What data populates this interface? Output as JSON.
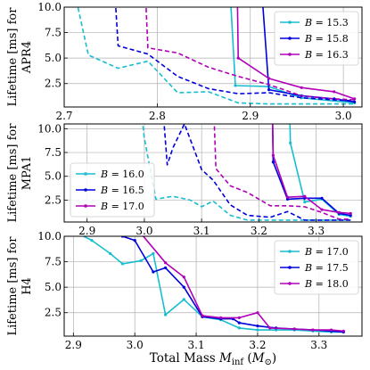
{
  "xlabel": "Total Mass M_inf (M⊙)",
  "colors": {
    "cyan": "#17becf",
    "blue": "#0000dd",
    "magenta": "#b000b8"
  },
  "chart_data": [
    {
      "type": "line",
      "ylabel": [
        "Lifetime [ms] for",
        "APR4"
      ],
      "xlim": [
        2.7,
        3.02
      ],
      "ylim": [
        0.2,
        10.0
      ],
      "xticks": [
        "2.7",
        "2.8",
        "2.9",
        "3.0"
      ],
      "xtick_values": [
        2.7,
        2.8,
        2.9,
        3.0
      ],
      "yticks": [
        "2.5",
        "5.0",
        "7.5",
        "10.0"
      ],
      "ytick_values": [
        2.5,
        5.0,
        7.5,
        10.0
      ],
      "legend": "top-right",
      "series": [
        {
          "name": "B = 15.3",
          "color": "cyan",
          "dashed": {
            "x": [
              2.71,
              2.726,
              2.758,
              2.79,
              2.822,
              2.855,
              2.887,
              2.92,
              2.955,
              2.99,
              3.012
            ],
            "y": [
              12.0,
              5.3,
              4.0,
              4.7,
              1.6,
              1.7,
              0.6,
              0.5,
              0.5,
              0.5,
              0.5
            ]
          },
          "solid": {
            "x": [
              2.878,
              2.884,
              2.92,
              2.955,
              3.012
            ],
            "y": [
              12.0,
              2.3,
              2.2,
              1.1,
              0.6
            ]
          }
        },
        {
          "name": "B = 15.8",
          "color": "blue",
          "dashed": {
            "x": [
              2.754,
              2.758,
              2.79,
              2.822,
              2.855,
              2.887,
              2.92,
              2.955,
              2.99,
              3.012
            ],
            "y": [
              12.0,
              6.2,
              5.4,
              3.2,
              2.0,
              1.5,
              1.6,
              1.1,
              0.9,
              0.8
            ]
          },
          "solid": {
            "x": [
              2.912,
              2.92,
              2.955,
              2.99,
              3.012
            ],
            "y": [
              12.0,
              1.9,
              1.3,
              1.0,
              0.7
            ]
          }
        },
        {
          "name": "B = 16.3",
          "color": "magenta",
          "dashed": {
            "x": [
              2.787,
              2.79,
              2.822,
              2.855,
              2.887,
              2.92,
              2.955,
              2.99,
              3.012
            ],
            "y": [
              12.0,
              6.0,
              5.5,
              4.1,
              3.2,
              2.4,
              1.3,
              1.0,
              0.9
            ]
          },
          "solid": {
            "x": [
              2.886,
              2.887,
              2.92,
              2.955,
              2.99,
              3.012
            ],
            "y": [
              12.0,
              5.0,
              3.0,
              2.1,
              1.7,
              1.0
            ]
          }
        }
      ]
    },
    {
      "type": "line",
      "ylabel": [
        "Lifetime [ms] for",
        "MPA1"
      ],
      "xlim": [
        2.86,
        3.38
      ],
      "ylim": [
        0.2,
        10.5
      ],
      "xticks": [
        "2.9",
        "3.0",
        "3.1",
        "3.2",
        "3.3"
      ],
      "xtick_values": [
        2.9,
        3.0,
        3.1,
        3.2,
        3.3
      ],
      "yticks": [
        "2.5",
        "5.0",
        "7.5",
        "10.0"
      ],
      "ytick_values": [
        2.5,
        5.0,
        7.5,
        10.0
      ],
      "legend": "bottom-left",
      "series": [
        {
          "name": "B = 16.0",
          "color": "cyan",
          "dashed": {
            "x": [
              2.99,
              3.0,
              3.02,
              3.05,
              3.08,
              3.1,
              3.12,
              3.15,
              3.18,
              3.22,
              3.25,
              3.28,
              3.31,
              3.34,
              3.36
            ],
            "y": [
              14.0,
              9.0,
              2.6,
              2.9,
              2.5,
              1.8,
              2.4,
              0.9,
              0.4,
              0.4,
              0.4,
              0.4,
              0.4,
              0.4,
              0.4
            ]
          },
          "solid": {
            "x": [
              3.253,
              3.255,
              3.28,
              3.31,
              3.34,
              3.36
            ],
            "y": [
              14.0,
              8.5,
              2.3,
              2.6,
              1.0,
              0.8
            ]
          }
        },
        {
          "name": "B = 16.5",
          "color": "blue",
          "dashed": {
            "x": [
              3.03,
              3.04,
              3.05,
              3.07,
              3.1,
              3.12,
              3.15,
              3.18,
              3.22,
              3.25,
              3.28,
              3.31,
              3.34,
              3.36
            ],
            "y": [
              14.0,
              6.2,
              8.0,
              10.5,
              5.7,
              4.6,
              2.0,
              0.9,
              0.7,
              1.3,
              0.4,
              0.4,
              0.4,
              0.4
            ]
          },
          "solid": {
            "x": [
              3.223,
              3.225,
              3.25,
              3.28,
              3.31,
              3.34,
              3.36
            ],
            "y": [
              14.0,
              6.5,
              2.6,
              2.7,
              2.7,
              1.1,
              0.9
            ]
          }
        },
        {
          "name": "B = 17.0",
          "color": "magenta",
          "dashed": {
            "x": [
              3.12,
              3.125,
              3.15,
              3.18,
              3.22,
              3.25,
              3.28,
              3.31,
              3.34,
              3.36
            ],
            "y": [
              14.0,
              5.8,
              4.0,
              3.3,
              1.9,
              1.9,
              1.8,
              1.2,
              0.5,
              0.5
            ]
          },
          "solid": {
            "x": [
              3.223,
              3.225,
              3.25,
              3.28,
              3.31,
              3.34,
              3.36
            ],
            "y": [
              14.0,
              7.2,
              2.8,
              2.9,
              1.5,
              1.2,
              1.1
            ]
          }
        }
      ]
    },
    {
      "type": "line",
      "ylabel": [
        "Lifetime [ms] for",
        "H4"
      ],
      "xlim": [
        2.885,
        3.37
      ],
      "ylim": [
        0.2,
        10.0
      ],
      "xticks": [
        "2.9",
        "3.0",
        "3.1",
        "3.2",
        "3.3"
      ],
      "xtick_values": [
        2.9,
        3.0,
        3.1,
        3.2,
        3.3
      ],
      "yticks": [
        "2.5",
        "5.0",
        "7.5",
        "10.0"
      ],
      "ytick_values": [
        2.5,
        5.0,
        7.5,
        10.0
      ],
      "legend": "top-right",
      "series": [
        {
          "name": "B = 17.0",
          "color": "cyan",
          "solid": {
            "x": [
              2.9,
              2.93,
              2.96,
              2.98,
              3.01,
              3.03,
              3.05,
              3.08,
              3.11,
              3.14,
              3.17,
              3.2,
              3.23,
              3.26,
              3.29,
              3.32,
              3.34
            ],
            "y": [
              10.5,
              9.6,
              8.3,
              7.3,
              7.6,
              8.3,
              2.3,
              3.8,
              2.1,
              1.8,
              1.0,
              0.8,
              0.8,
              0.8,
              0.7,
              0.6,
              0.6
            ]
          }
        },
        {
          "name": "B = 17.5",
          "color": "blue",
          "solid": {
            "x": [
              2.95,
              2.98,
              3.0,
              3.03,
              3.05,
              3.08,
              3.11,
              3.14,
              3.16,
              3.17,
              3.2,
              3.23,
              3.26,
              3.29,
              3.32,
              3.34
            ],
            "y": [
              11.0,
              10.0,
              9.6,
              6.5,
              6.9,
              5.0,
              2.1,
              1.9,
              1.9,
              1.5,
              1.2,
              1.0,
              0.9,
              0.8,
              0.7,
              0.6
            ]
          }
        },
        {
          "name": "B = 18.0",
          "color": "magenta",
          "solid": {
            "x": [
              3.0,
              3.05,
              3.08,
              3.11,
              3.14,
              3.17,
              3.2,
              3.22,
              3.26,
              3.29,
              3.32,
              3.34
            ],
            "y": [
              11.0,
              7.4,
              6.0,
              2.2,
              2.0,
              2.0,
              2.5,
              1.0,
              0.9,
              0.8,
              0.8,
              0.7
            ]
          }
        }
      ]
    }
  ]
}
